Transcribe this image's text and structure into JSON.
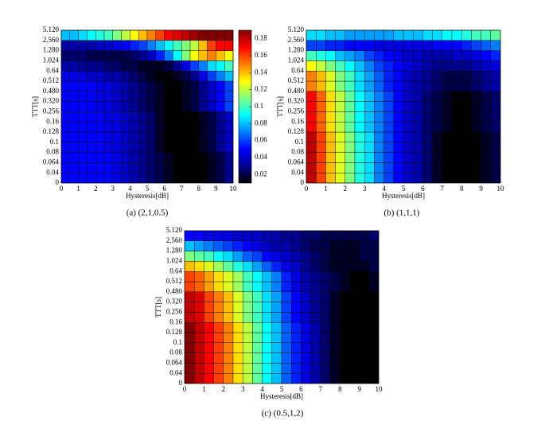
{
  "chart_data": [
    {
      "type": "heatmap",
      "caption": "(a)  (2,1,0.5)",
      "x_label": "Hysteresis[dB]",
      "y_label": "TTT[s]",
      "xlim": [
        0,
        10
      ],
      "xticks": [
        0,
        1,
        2,
        3,
        4,
        5,
        6,
        7,
        8,
        9,
        10
      ],
      "y_tick_labels": [
        "0",
        "0.04",
        "0.064",
        "0.08",
        "0.1",
        "0.128",
        "0.16",
        "0.256",
        "0.320",
        "0.480",
        "0.512",
        "0.64",
        "1.024",
        "1.280",
        "2.560",
        "5.120"
      ],
      "zlim": [
        0.01,
        0.19
      ],
      "colormap": [
        "#000000",
        "#00008f",
        "#0000ff",
        "#0080ff",
        "#00ffff",
        "#80ff80",
        "#ffff00",
        "#ff8000",
        "#ff0000",
        "#800000"
      ],
      "colorbar_ticks": [
        0.02,
        0.04,
        0.06,
        0.08,
        0.1,
        0.12,
        0.14,
        0.16,
        0.18
      ],
      "z": [
        [
          0.05,
          0.05,
          0.05,
          0.05,
          0.05,
          0.05,
          0.045,
          0.04,
          0.035,
          0.03,
          0.025,
          0.02,
          0.015,
          0.01,
          0.01,
          0.01,
          0.01,
          0.015,
          0.02,
          0.03
        ],
        [
          0.05,
          0.05,
          0.05,
          0.05,
          0.05,
          0.05,
          0.045,
          0.04,
          0.035,
          0.03,
          0.025,
          0.02,
          0.015,
          0.01,
          0.01,
          0.01,
          0.01,
          0.015,
          0.02,
          0.03
        ],
        [
          0.05,
          0.05,
          0.05,
          0.05,
          0.05,
          0.05,
          0.045,
          0.04,
          0.035,
          0.03,
          0.025,
          0.02,
          0.015,
          0.01,
          0.01,
          0.01,
          0.01,
          0.015,
          0.02,
          0.03
        ],
        [
          0.05,
          0.05,
          0.05,
          0.05,
          0.05,
          0.045,
          0.045,
          0.04,
          0.035,
          0.03,
          0.025,
          0.015,
          0.01,
          0.01,
          0.01,
          0.01,
          0.015,
          0.02,
          0.03,
          0.04
        ],
        [
          0.05,
          0.05,
          0.05,
          0.05,
          0.05,
          0.045,
          0.045,
          0.04,
          0.035,
          0.03,
          0.025,
          0.015,
          0.01,
          0.01,
          0.01,
          0.01,
          0.015,
          0.02,
          0.03,
          0.04
        ],
        [
          0.05,
          0.05,
          0.05,
          0.05,
          0.05,
          0.045,
          0.045,
          0.04,
          0.035,
          0.03,
          0.025,
          0.015,
          0.01,
          0.01,
          0.01,
          0.01,
          0.015,
          0.02,
          0.03,
          0.04
        ],
        [
          0.05,
          0.05,
          0.05,
          0.05,
          0.05,
          0.045,
          0.045,
          0.04,
          0.035,
          0.03,
          0.025,
          0.015,
          0.01,
          0.01,
          0.01,
          0.01,
          0.015,
          0.02,
          0.03,
          0.04
        ],
        [
          0.05,
          0.05,
          0.05,
          0.05,
          0.045,
          0.045,
          0.04,
          0.035,
          0.03,
          0.025,
          0.02,
          0.015,
          0.01,
          0.01,
          0.015,
          0.02,
          0.03,
          0.04,
          0.05,
          0.06
        ],
        [
          0.05,
          0.05,
          0.05,
          0.05,
          0.045,
          0.045,
          0.04,
          0.035,
          0.03,
          0.025,
          0.02,
          0.015,
          0.01,
          0.01,
          0.015,
          0.02,
          0.03,
          0.04,
          0.05,
          0.06
        ],
        [
          0.05,
          0.05,
          0.05,
          0.05,
          0.045,
          0.045,
          0.04,
          0.035,
          0.03,
          0.025,
          0.02,
          0.015,
          0.01,
          0.01,
          0.015,
          0.02,
          0.03,
          0.04,
          0.05,
          0.06
        ],
        [
          0.045,
          0.045,
          0.045,
          0.04,
          0.04,
          0.035,
          0.035,
          0.03,
          0.025,
          0.02,
          0.015,
          0.01,
          0.01,
          0.015,
          0.02,
          0.03,
          0.045,
          0.06,
          0.07,
          0.08
        ],
        [
          0.035,
          0.035,
          0.03,
          0.03,
          0.03,
          0.025,
          0.025,
          0.02,
          0.02,
          0.015,
          0.015,
          0.015,
          0.02,
          0.03,
          0.045,
          0.06,
          0.07,
          0.085,
          0.09,
          0.1
        ],
        [
          0.025,
          0.025,
          0.025,
          0.02,
          0.02,
          0.02,
          0.02,
          0.02,
          0.025,
          0.03,
          0.04,
          0.055,
          0.07,
          0.09,
          0.11,
          0.13,
          0.14,
          0.15,
          0.14,
          0.13
        ],
        [
          0.035,
          0.035,
          0.035,
          0.035,
          0.04,
          0.04,
          0.045,
          0.05,
          0.055,
          0.06,
          0.07,
          0.08,
          0.09,
          0.1,
          0.11,
          0.12,
          0.14,
          0.16,
          0.17,
          0.17
        ],
        [
          0.08,
          0.08,
          0.085,
          0.09,
          0.095,
          0.1,
          0.11,
          0.12,
          0.13,
          0.14,
          0.15,
          0.16,
          0.17,
          0.175,
          0.18,
          0.185,
          0.19,
          0.19,
          0.19,
          0.19
        ]
      ]
    },
    {
      "type": "heatmap",
      "caption": "(b)  (1,1,1)",
      "x_label": "Hysteresis[dB]",
      "y_label": "TTT[s]",
      "xlim": [
        0,
        10
      ],
      "xticks": [
        0,
        1,
        2,
        3,
        4,
        5,
        6,
        7,
        8,
        9,
        10
      ],
      "y_tick_labels": [
        "0",
        "0.04",
        "0.064",
        "0.08",
        "0.1",
        "0.128",
        "0.16",
        "0.256",
        "0.320",
        "0.480",
        "0.512",
        "0.64",
        "1.024",
        "1.280",
        "2.560",
        "5.120"
      ],
      "zlim": [
        0.01,
        0.19
      ],
      "colormap": [
        "#000000",
        "#00008f",
        "#0000ff",
        "#0080ff",
        "#00ffff",
        "#80ff80",
        "#ffff00",
        "#ff8000",
        "#ff0000",
        "#800000"
      ],
      "z": [
        [
          0.18,
          0.16,
          0.14,
          0.125,
          0.11,
          0.095,
          0.085,
          0.07,
          0.06,
          0.05,
          0.04,
          0.035,
          0.025,
          0.015,
          0.01,
          0.01,
          0.01,
          0.01,
          0.015,
          0.02
        ],
        [
          0.18,
          0.16,
          0.14,
          0.125,
          0.11,
          0.095,
          0.085,
          0.07,
          0.06,
          0.05,
          0.04,
          0.035,
          0.025,
          0.015,
          0.01,
          0.01,
          0.01,
          0.01,
          0.015,
          0.02
        ],
        [
          0.18,
          0.16,
          0.14,
          0.125,
          0.11,
          0.095,
          0.085,
          0.07,
          0.06,
          0.05,
          0.04,
          0.035,
          0.025,
          0.015,
          0.01,
          0.01,
          0.01,
          0.01,
          0.015,
          0.02
        ],
        [
          0.18,
          0.16,
          0.14,
          0.125,
          0.11,
          0.095,
          0.085,
          0.07,
          0.06,
          0.05,
          0.04,
          0.035,
          0.025,
          0.015,
          0.01,
          0.01,
          0.01,
          0.01,
          0.015,
          0.02
        ],
        [
          0.18,
          0.16,
          0.14,
          0.125,
          0.11,
          0.095,
          0.085,
          0.07,
          0.06,
          0.05,
          0.04,
          0.035,
          0.025,
          0.015,
          0.01,
          0.01,
          0.01,
          0.01,
          0.015,
          0.02
        ],
        [
          0.17,
          0.155,
          0.135,
          0.12,
          0.105,
          0.09,
          0.08,
          0.07,
          0.06,
          0.05,
          0.04,
          0.035,
          0.025,
          0.02,
          0.015,
          0.01,
          0.01,
          0.015,
          0.02,
          0.025
        ],
        [
          0.17,
          0.155,
          0.135,
          0.12,
          0.105,
          0.09,
          0.08,
          0.07,
          0.06,
          0.05,
          0.04,
          0.035,
          0.025,
          0.02,
          0.015,
          0.01,
          0.01,
          0.015,
          0.02,
          0.025
        ],
        [
          0.17,
          0.155,
          0.135,
          0.12,
          0.105,
          0.09,
          0.08,
          0.07,
          0.06,
          0.05,
          0.04,
          0.035,
          0.025,
          0.02,
          0.015,
          0.01,
          0.01,
          0.015,
          0.02,
          0.025
        ],
        [
          0.17,
          0.155,
          0.135,
          0.12,
          0.105,
          0.09,
          0.08,
          0.07,
          0.06,
          0.05,
          0.04,
          0.035,
          0.025,
          0.02,
          0.015,
          0.01,
          0.01,
          0.015,
          0.02,
          0.025
        ],
        [
          0.15,
          0.14,
          0.125,
          0.11,
          0.1,
          0.085,
          0.075,
          0.065,
          0.055,
          0.05,
          0.04,
          0.035,
          0.03,
          0.025,
          0.02,
          0.02,
          0.02,
          0.025,
          0.03,
          0.035
        ],
        [
          0.15,
          0.14,
          0.125,
          0.11,
          0.1,
          0.085,
          0.075,
          0.065,
          0.055,
          0.05,
          0.04,
          0.035,
          0.03,
          0.025,
          0.02,
          0.02,
          0.02,
          0.025,
          0.03,
          0.035
        ],
        [
          0.13,
          0.12,
          0.11,
          0.1,
          0.09,
          0.08,
          0.07,
          0.06,
          0.055,
          0.05,
          0.045,
          0.04,
          0.035,
          0.03,
          0.03,
          0.03,
          0.03,
          0.035,
          0.04,
          0.045
        ],
        [
          0.1,
          0.095,
          0.09,
          0.08,
          0.075,
          0.07,
          0.06,
          0.055,
          0.05,
          0.045,
          0.04,
          0.04,
          0.035,
          0.035,
          0.035,
          0.04,
          0.04,
          0.045,
          0.05,
          0.055
        ],
        [
          0.06,
          0.06,
          0.055,
          0.055,
          0.05,
          0.05,
          0.05,
          0.045,
          0.045,
          0.045,
          0.045,
          0.045,
          0.045,
          0.05,
          0.05,
          0.05,
          0.055,
          0.06,
          0.065,
          0.07
        ],
        [
          0.085,
          0.085,
          0.08,
          0.08,
          0.075,
          0.075,
          0.075,
          0.075,
          0.075,
          0.08,
          0.08,
          0.08,
          0.085,
          0.085,
          0.09,
          0.09,
          0.095,
          0.1,
          0.1,
          0.105
        ]
      ]
    },
    {
      "type": "heatmap",
      "caption": "(c)  (0.5,1,2)",
      "x_label": "Hysteresis[dB]",
      "y_label": "TTT[s]",
      "xlim": [
        0,
        10
      ],
      "xticks": [
        0,
        1,
        2,
        3,
        4,
        5,
        6,
        7,
        8,
        9,
        10
      ],
      "y_tick_labels": [
        "0",
        "0.04",
        "0.064",
        "0.08",
        "0.1",
        "0.128",
        "0.16",
        "0.256",
        "0.320",
        "0.480",
        "0.512",
        "0.64",
        "1.024",
        "1.280",
        "2.560",
        "5.120"
      ],
      "zlim": [
        0.01,
        0.19
      ],
      "colormap": [
        "#000000",
        "#00008f",
        "#0000ff",
        "#0080ff",
        "#00ffff",
        "#80ff80",
        "#ffff00",
        "#ff8000",
        "#ff0000",
        "#800000"
      ],
      "z": [
        [
          0.19,
          0.18,
          0.17,
          0.16,
          0.15,
          0.135,
          0.12,
          0.105,
          0.09,
          0.08,
          0.065,
          0.055,
          0.045,
          0.035,
          0.025,
          0.015,
          0.01,
          0.01,
          0.01,
          0.01
        ],
        [
          0.19,
          0.18,
          0.17,
          0.16,
          0.15,
          0.135,
          0.12,
          0.105,
          0.09,
          0.08,
          0.065,
          0.055,
          0.045,
          0.035,
          0.025,
          0.015,
          0.01,
          0.01,
          0.01,
          0.01
        ],
        [
          0.19,
          0.18,
          0.17,
          0.16,
          0.15,
          0.135,
          0.12,
          0.105,
          0.09,
          0.08,
          0.065,
          0.055,
          0.045,
          0.035,
          0.025,
          0.015,
          0.01,
          0.01,
          0.01,
          0.01
        ],
        [
          0.19,
          0.18,
          0.17,
          0.16,
          0.15,
          0.135,
          0.12,
          0.105,
          0.09,
          0.08,
          0.065,
          0.055,
          0.045,
          0.035,
          0.025,
          0.015,
          0.01,
          0.01,
          0.01,
          0.01
        ],
        [
          0.19,
          0.18,
          0.17,
          0.16,
          0.15,
          0.135,
          0.12,
          0.105,
          0.09,
          0.08,
          0.065,
          0.055,
          0.045,
          0.035,
          0.025,
          0.015,
          0.01,
          0.01,
          0.01,
          0.01
        ],
        [
          0.19,
          0.18,
          0.17,
          0.16,
          0.15,
          0.135,
          0.12,
          0.105,
          0.09,
          0.08,
          0.065,
          0.055,
          0.045,
          0.035,
          0.025,
          0.015,
          0.01,
          0.01,
          0.01,
          0.01
        ],
        [
          0.18,
          0.175,
          0.16,
          0.15,
          0.14,
          0.125,
          0.11,
          0.1,
          0.085,
          0.075,
          0.06,
          0.05,
          0.04,
          0.03,
          0.025,
          0.015,
          0.01,
          0.01,
          0.01,
          0.01
        ],
        [
          0.18,
          0.175,
          0.16,
          0.15,
          0.14,
          0.125,
          0.11,
          0.1,
          0.085,
          0.075,
          0.06,
          0.05,
          0.04,
          0.03,
          0.025,
          0.015,
          0.01,
          0.01,
          0.01,
          0.01
        ],
        [
          0.18,
          0.175,
          0.16,
          0.15,
          0.14,
          0.125,
          0.11,
          0.1,
          0.085,
          0.075,
          0.06,
          0.05,
          0.04,
          0.03,
          0.025,
          0.015,
          0.01,
          0.01,
          0.01,
          0.01
        ],
        [
          0.16,
          0.155,
          0.145,
          0.135,
          0.125,
          0.115,
          0.1,
          0.09,
          0.08,
          0.07,
          0.055,
          0.045,
          0.035,
          0.03,
          0.025,
          0.02,
          0.015,
          0.01,
          0.01,
          0.015
        ],
        [
          0.16,
          0.155,
          0.145,
          0.135,
          0.125,
          0.115,
          0.1,
          0.09,
          0.08,
          0.07,
          0.055,
          0.045,
          0.035,
          0.03,
          0.025,
          0.02,
          0.015,
          0.01,
          0.01,
          0.015
        ],
        [
          0.14,
          0.135,
          0.125,
          0.115,
          0.105,
          0.095,
          0.085,
          0.075,
          0.065,
          0.055,
          0.045,
          0.04,
          0.03,
          0.025,
          0.02,
          0.015,
          0.015,
          0.015,
          0.015,
          0.02
        ],
        [
          0.11,
          0.105,
          0.1,
          0.09,
          0.085,
          0.075,
          0.065,
          0.06,
          0.05,
          0.045,
          0.04,
          0.035,
          0.03,
          0.025,
          0.02,
          0.015,
          0.015,
          0.015,
          0.02,
          0.02
        ],
        [
          0.08,
          0.075,
          0.07,
          0.065,
          0.06,
          0.055,
          0.05,
          0.045,
          0.04,
          0.035,
          0.035,
          0.03,
          0.025,
          0.02,
          0.02,
          0.015,
          0.015,
          0.015,
          0.02,
          0.02
        ],
        [
          0.05,
          0.05,
          0.045,
          0.045,
          0.045,
          0.04,
          0.04,
          0.04,
          0.035,
          0.035,
          0.03,
          0.03,
          0.025,
          0.025,
          0.02,
          0.02,
          0.02,
          0.02,
          0.02,
          0.025
        ]
      ]
    }
  ]
}
